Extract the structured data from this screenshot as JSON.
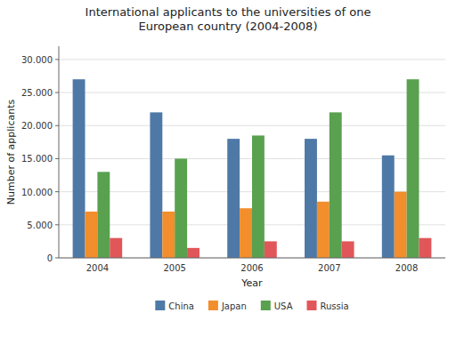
{
  "chart_data": {
    "type": "bar",
    "title": "International applicants to the universities of one\nEuropean country (2004-2008)",
    "xlabel": "Year",
    "ylabel": "Number of applicants",
    "categories": [
      "2004",
      "2005",
      "2006",
      "2007",
      "2008"
    ],
    "series": [
      {
        "name": "China",
        "values": [
          27000,
          22000,
          18000,
          18000,
          15500
        ]
      },
      {
        "name": "Japan",
        "values": [
          7000,
          7000,
          7500,
          8500,
          10000
        ]
      },
      {
        "name": "USA",
        "values": [
          13000,
          15000,
          18500,
          22000,
          27000
        ]
      },
      {
        "name": "Russia",
        "values": [
          3000,
          1500,
          2500,
          2500,
          3000
        ]
      }
    ],
    "ylim": [
      0,
      32000
    ],
    "yticks": [
      0,
      {
        "value": 5000,
        "label": "5.000"
      },
      {
        "value": 10000,
        "label": "10.000"
      },
      {
        "value": 15000,
        "label": "15.000"
      },
      {
        "value": 20000,
        "label": "20.000"
      },
      {
        "value": 25000,
        "label": "25.000"
      },
      {
        "value": 30000,
        "label": "30.000"
      }
    ],
    "grid": true,
    "legend": "bottom"
  }
}
